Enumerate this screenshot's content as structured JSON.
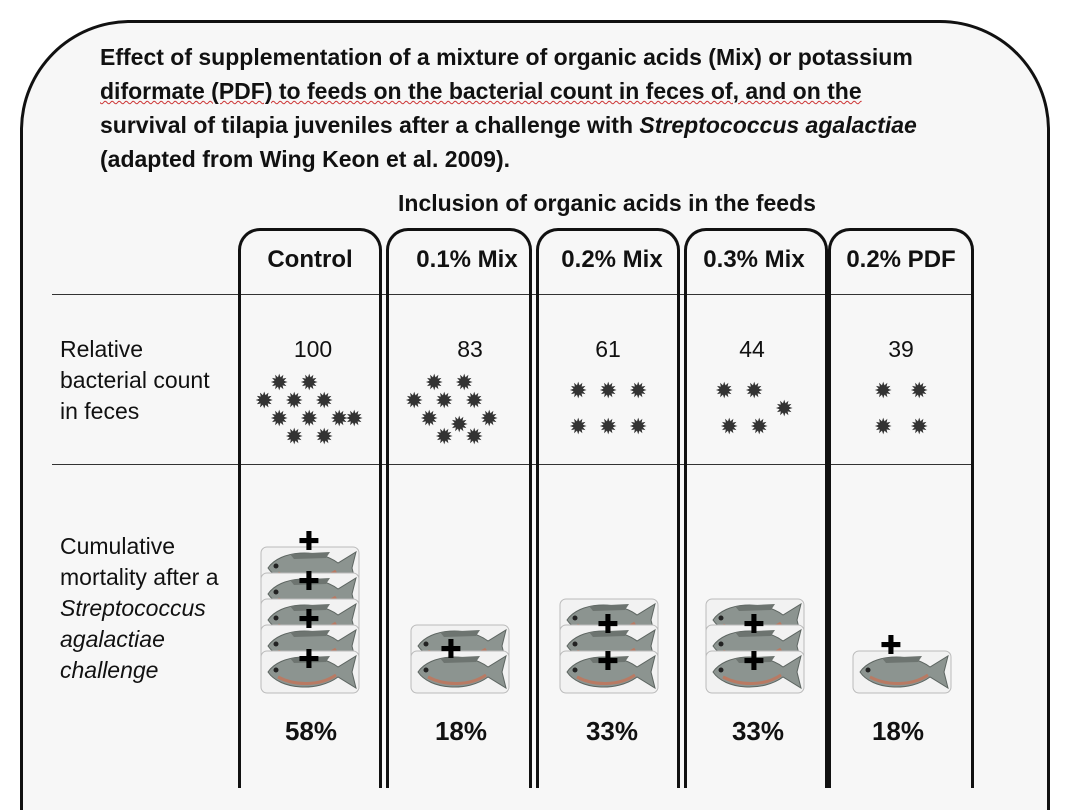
{
  "title_lines": [
    "Effect of supplementation of a mixture of organic acids (Mix) or potassium",
    "diformate (PDF) to feeds on the bacterial count in feces of, and on the",
    "survival of tilapia juveniles after a challenge with",
    "Streptococcus agalactiae",
    "(adapted from Wing Keon et al. 2009)."
  ],
  "header": "Inclusion of organic acids in the feeds",
  "row_labels": {
    "bacteria": [
      "Relative",
      "bacterial count",
      "in feces"
    ],
    "mortality": [
      "Cumulative",
      "mortality after a",
      "Streptococcus",
      "agalactiae",
      "challenge"
    ]
  },
  "columns": [
    {
      "label": "Control",
      "count": "100",
      "mortality": "58%",
      "fish": 5,
      "bacteria": 12
    },
    {
      "label": "0.1% Mix",
      "count": "83",
      "mortality": "18%",
      "fish": 2,
      "bacteria": 10
    },
    {
      "label": "0.2% Mix",
      "count": "61",
      "mortality": "33%",
      "fish": 3,
      "bacteria": 6
    },
    {
      "label": "0.3% Mix",
      "count": "44",
      "mortality": "33%",
      "fish": 3,
      "bacteria": 5
    },
    {
      "label": "0.2% PDF",
      "count": "39",
      "mortality": "18%",
      "fish": 1,
      "bacteria": 4
    }
  ],
  "icons": {
    "bacterium": "bacterium-icon",
    "fish": "tilapia-fish-icon",
    "cross": "cross-icon"
  }
}
